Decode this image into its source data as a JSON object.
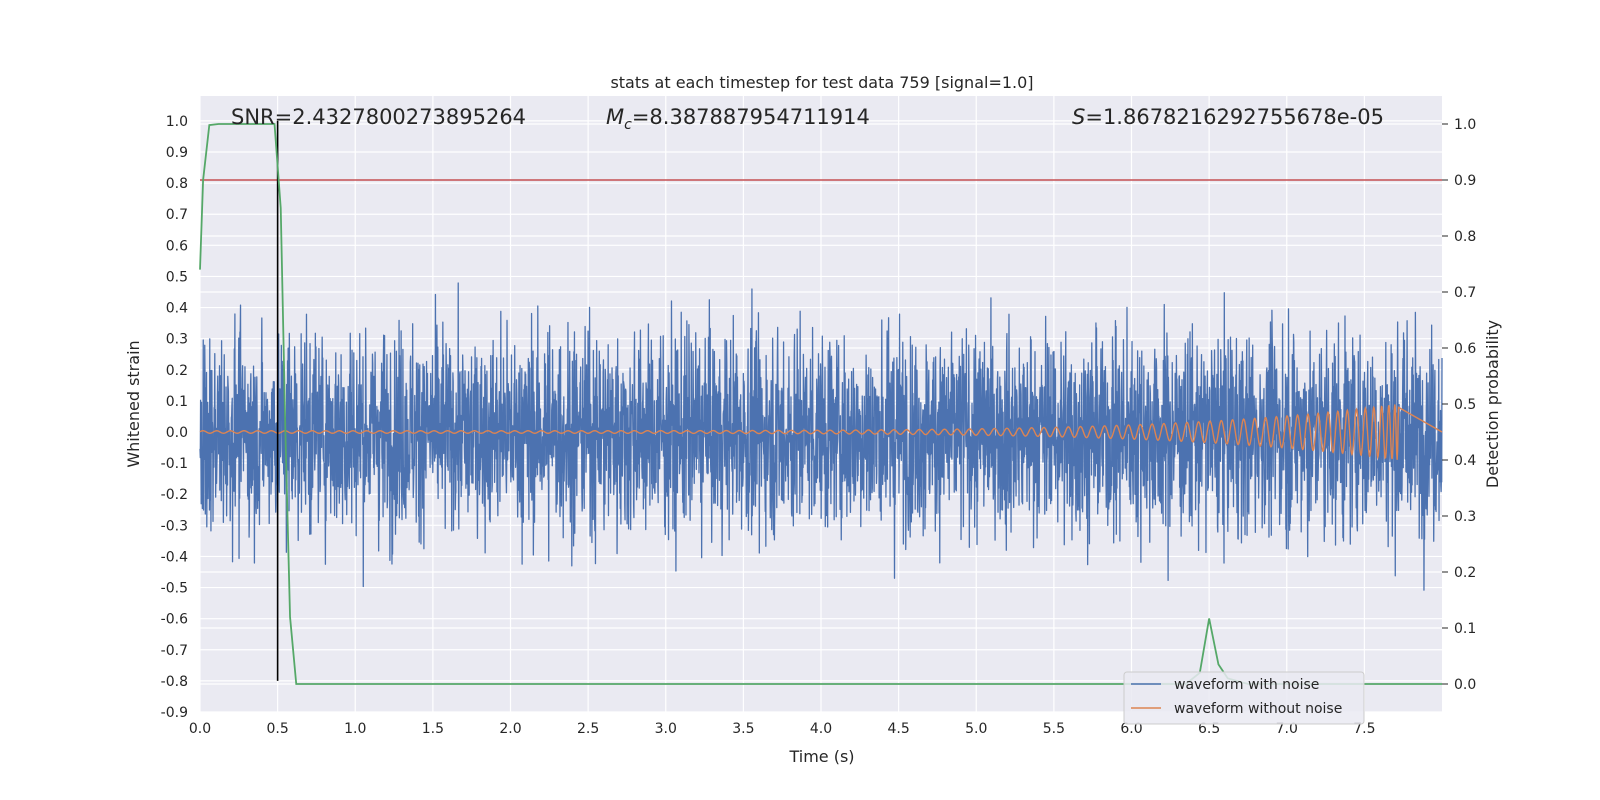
{
  "chart_data": {
    "type": "line",
    "title": "stats at each timestep for test data 759 [signal=1.0]",
    "xlabel": "Time (s)",
    "ylabel": "Whitened strain",
    "y2label": "Detection probability",
    "xlim": [
      0.0,
      8.0
    ],
    "ylim": [
      -0.9,
      1.08
    ],
    "y2lim": [
      -0.05,
      1.05
    ],
    "xticks": [
      "0.0",
      "0.5",
      "1.0",
      "1.5",
      "2.0",
      "2.5",
      "3.0",
      "3.5",
      "4.0",
      "4.5",
      "5.0",
      "5.5",
      "6.0",
      "6.5",
      "7.0",
      "7.5"
    ],
    "yticks": [
      "1.0",
      "0.9",
      "0.8",
      "0.7",
      "0.6",
      "0.5",
      "0.4",
      "0.3",
      "0.2",
      "0.1",
      "0.0",
      "-0.1",
      "-0.2",
      "-0.3",
      "-0.4",
      "-0.5",
      "-0.6",
      "-0.7",
      "-0.8",
      "-0.9"
    ],
    "y2ticks": [
      "1.0",
      "0.9",
      "0.8",
      "0.7",
      "0.6",
      "0.5",
      "0.4",
      "0.3",
      "0.2",
      "0.1",
      "0.0"
    ],
    "grid": true,
    "annotations": {
      "snr": "SNR=2.4327800273895264",
      "mc_symbol": "M",
      "mc_sub": "c",
      "mc_value": "=8.387887954711914",
      "s_symbol": "S",
      "s_value": "=1.8678216292755678e-05"
    },
    "series": [
      {
        "name": "waveform with noise",
        "color": "#4c72b0",
        "envelope": {
          "x_start": 0.0,
          "x_end": 8.0,
          "typical_max": 0.45,
          "typical_min": -0.45,
          "peak_max": 1.0,
          "peak_min": -0.82
        }
      },
      {
        "name": "waveform without noise",
        "color": "#dd8452",
        "chirp": {
          "x_start": 0.0,
          "x_merger": 7.72,
          "amp_start": 0.004,
          "amp_merger": 0.09
        }
      }
    ],
    "detection_probability": {
      "color": "#55a868",
      "axis": "right",
      "points": [
        [
          0.0,
          0.74
        ],
        [
          0.02,
          0.9
        ],
        [
          0.06,
          0.998
        ],
        [
          0.12,
          1.0
        ],
        [
          0.3,
          1.0
        ],
        [
          0.48,
          1.0
        ],
        [
          0.52,
          0.85
        ],
        [
          0.55,
          0.45
        ],
        [
          0.58,
          0.12
        ],
        [
          0.62,
          0.0
        ],
        [
          6.35,
          0.0
        ],
        [
          6.44,
          0.02
        ],
        [
          6.5,
          0.117
        ],
        [
          6.56,
          0.035
        ],
        [
          6.62,
          0.01
        ],
        [
          6.75,
          0.0
        ],
        [
          8.0,
          0.0
        ]
      ]
    },
    "threshold": {
      "color": "#c44e52",
      "axis": "right",
      "value": 0.9
    },
    "marker_line": {
      "color": "#000000",
      "x": 0.5
    },
    "legend": {
      "placement": "lower-right"
    }
  }
}
